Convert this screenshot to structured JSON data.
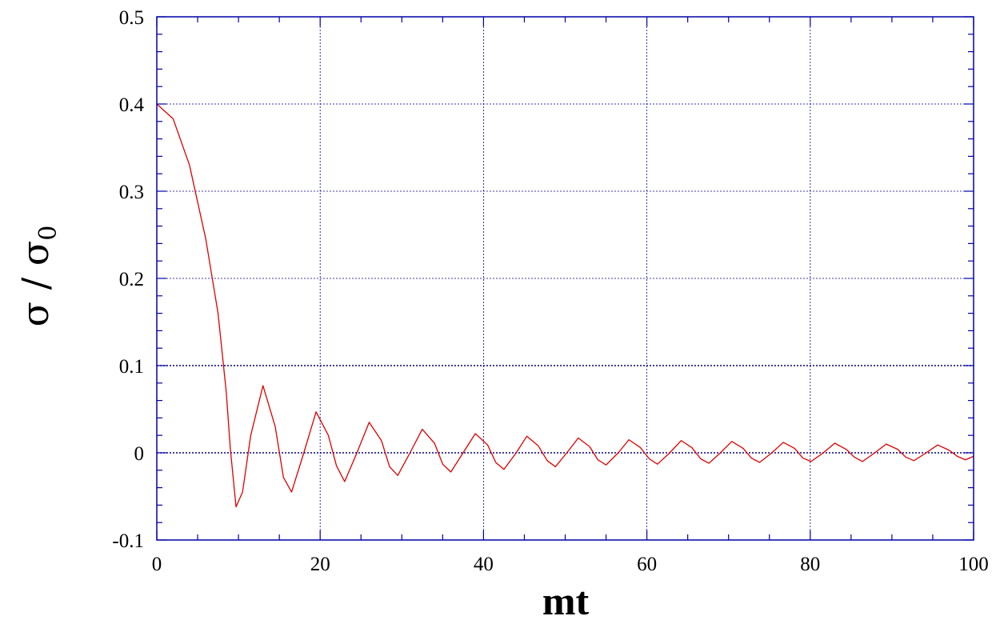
{
  "chart_data": {
    "type": "line",
    "title": "",
    "xlabel": "mt",
    "ylabel": "σ / σ0",
    "ylabel_parts": {
      "main": "σ / σ",
      "subscript": "0"
    },
    "xlim": [
      0,
      100
    ],
    "ylim": [
      -0.1,
      0.5
    ],
    "xticks": [
      0,
      20,
      40,
      60,
      80,
      100
    ],
    "xtick_labels": [
      "0",
      "20",
      "40",
      "60",
      "80",
      "100"
    ],
    "yticks": [
      -0.1,
      0,
      0.1,
      0.2,
      0.3,
      0.4,
      0.5
    ],
    "ytick_labels": [
      "-0.1",
      "0",
      "0.1",
      "0.2",
      "0.3",
      "0.4",
      "0.5"
    ],
    "x_minor_step": 5,
    "y_minor_step": 0.02,
    "grid": true,
    "legend": "none",
    "colors": {
      "line": "#dd0000",
      "axes": "#0000aa",
      "grid": "#0000aa",
      "text": "#000000"
    },
    "series": [
      {
        "x": [
          0,
          2,
          4,
          6,
          7.5,
          8.5,
          9,
          9.7,
          10.5,
          11.5,
          13,
          14.5,
          15.5,
          16.5,
          18,
          19.5,
          21,
          22,
          23,
          24.5,
          26,
          27.5,
          28.5,
          29.5,
          31,
          32.5,
          34,
          35,
          36,
          37.5,
          39,
          40.5,
          41.5,
          42.5,
          44,
          45.3,
          46.7,
          47.8,
          48.8,
          50.2,
          51.6,
          53,
          54,
          55,
          56.5,
          57.8,
          59.2,
          60.3,
          61.3,
          62.8,
          64.2,
          65.5,
          66.6,
          67.6,
          69,
          70.4,
          71.8,
          72.8,
          73.8,
          75.3,
          76.7,
          78.1,
          79.1,
          80.1,
          81.6,
          83,
          84.4,
          85.4,
          86.4,
          87.9,
          89.3,
          90.7,
          91.7,
          92.7,
          94.2,
          95.6,
          97,
          98,
          99,
          100
        ],
        "values": [
          0.4,
          0.383,
          0.33,
          0.245,
          0.16,
          0.07,
          0.005,
          -0.062,
          -0.045,
          0.02,
          0.077,
          0.03,
          -0.028,
          -0.045,
          0.0,
          0.047,
          0.02,
          -0.015,
          -0.033,
          0.0,
          0.035,
          0.014,
          -0.016,
          -0.026,
          0.0,
          0.027,
          0.011,
          -0.013,
          -0.022,
          0.0,
          0.022,
          0.009,
          -0.011,
          -0.019,
          0.0,
          0.019,
          0.008,
          -0.009,
          -0.016,
          0.0,
          0.017,
          0.007,
          -0.008,
          -0.014,
          0.0,
          0.015,
          0.006,
          -0.007,
          -0.013,
          0.0,
          0.014,
          0.006,
          -0.007,
          -0.012,
          0.0,
          0.013,
          0.005,
          -0.006,
          -0.011,
          0.0,
          0.012,
          0.005,
          -0.006,
          -0.01,
          0.0,
          0.011,
          0.004,
          -0.005,
          -0.01,
          0.0,
          0.01,
          0.004,
          -0.005,
          -0.009,
          0.0,
          0.009,
          0.003,
          -0.004,
          -0.008,
          -0.004
        ]
      }
    ]
  }
}
